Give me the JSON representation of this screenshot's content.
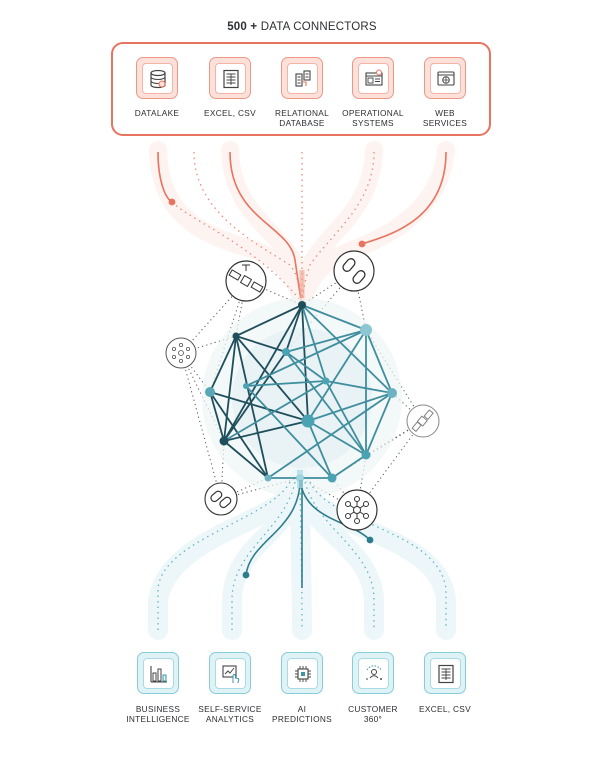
{
  "header": {
    "title_bold": "500 +",
    "title_rest": "DATA CONNECTORS"
  },
  "sources": [
    {
      "label_line1": "DATALAKE",
      "label_line2": "",
      "icon": "database-icon"
    },
    {
      "label_line1": "EXCEL, CSV",
      "label_line2": "",
      "icon": "spreadsheet-icon"
    },
    {
      "label_line1": "RELATIONAL",
      "label_line2": "DATABASE",
      "icon": "relational-database-icon"
    },
    {
      "label_line1": "OPERATIONAL",
      "label_line2": "SYSTEMS",
      "icon": "operational-systems-icon"
    },
    {
      "label_line1": "WEB",
      "label_line2": "SERVICES",
      "icon": "web-browser-icon"
    }
  ],
  "outputs": [
    {
      "label_line1": "BUSINESS",
      "label_line2": "INTELLIGENCE",
      "icon": "bar-chart-icon"
    },
    {
      "label_line1": "SELF-SERVICE",
      "label_line2": "ANALYTICS",
      "icon": "analytics-touch-icon"
    },
    {
      "label_line1": "AI",
      "label_line2": "PREDICTIONS",
      "icon": "ai-chip-icon"
    },
    {
      "label_line1": "CUSTOMER",
      "label_line2": "360°",
      "icon": "customer-360-icon"
    },
    {
      "label_line1": "EXCEL, CSV",
      "label_line2": "",
      "icon": "spreadsheet-icon"
    }
  ],
  "colors": {
    "source_accent": "#e8735f",
    "output_accent": "#3d96a6",
    "network_dark": "#1f4f5c",
    "network_teal": "#4aa3b3"
  },
  "satellite_icons": [
    "satellite-icon",
    "link-chain-icon",
    "hub-network-icon",
    "satellite-icon",
    "link-chain-icon",
    "hub-network-icon"
  ]
}
